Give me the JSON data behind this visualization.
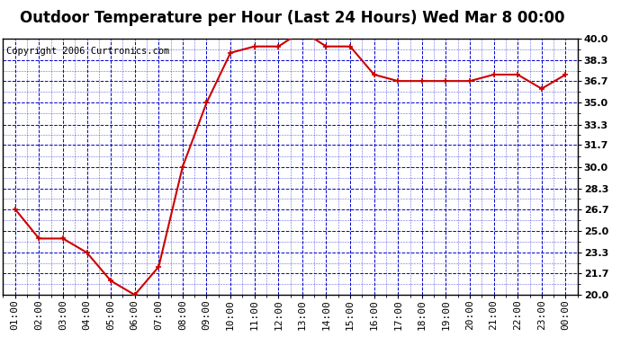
{
  "title": "Outdoor Temperature per Hour (Last 24 Hours) Wed Mar 8 00:00",
  "copyright": "Copyright 2006 Curtronics.com",
  "x_labels": [
    "01:00",
    "02:00",
    "03:00",
    "04:00",
    "05:00",
    "06:00",
    "07:00",
    "08:00",
    "09:00",
    "10:00",
    "11:00",
    "12:00",
    "13:00",
    "14:00",
    "15:00",
    "16:00",
    "17:00",
    "18:00",
    "19:00",
    "20:00",
    "21:00",
    "22:00",
    "23:00",
    "00:00"
  ],
  "y_values": [
    26.7,
    24.4,
    24.4,
    23.3,
    21.1,
    20.0,
    22.2,
    30.0,
    35.0,
    38.9,
    39.4,
    39.4,
    40.6,
    39.4,
    39.4,
    37.2,
    36.7,
    36.7,
    36.7,
    36.7,
    37.2,
    37.2,
    36.1,
    37.2
  ],
  "ylim": [
    20.0,
    40.0
  ],
  "yticks": [
    20.0,
    21.7,
    23.3,
    25.0,
    26.7,
    28.3,
    30.0,
    31.7,
    33.3,
    35.0,
    36.7,
    38.3,
    40.0
  ],
  "line_color": "#cc0000",
  "marker_color": "#cc0000",
  "bg_color": "#ffffff",
  "plot_bg_color": "#ffffff",
  "grid_color_major": "#0000cc",
  "grid_color_minor": "#0000cc",
  "title_fontsize": 12,
  "copyright_fontsize": 7.5,
  "tick_fontsize": 8
}
